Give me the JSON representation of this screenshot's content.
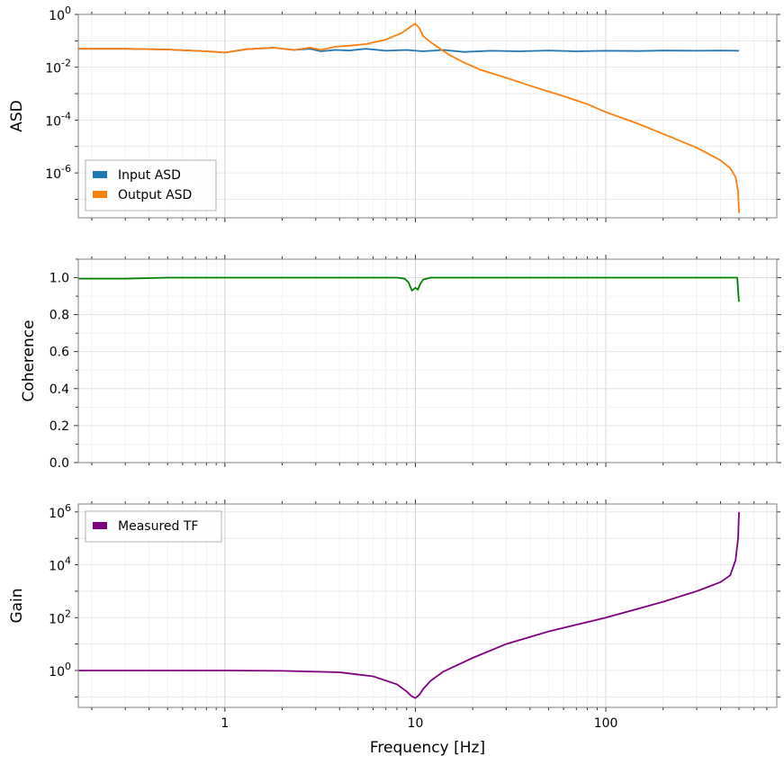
{
  "chart_data": [
    {
      "type": "line",
      "ylabel": "ASD",
      "x_scale": "log",
      "y_scale": "log",
      "xlim": [
        0.17,
        790
      ],
      "ylim": [
        2e-08,
        1.0
      ],
      "x_tick_labels": [],
      "y_tick_values": [
        1,
        0.01,
        0.0001,
        1e-06
      ],
      "y_tick_labels": [
        {
          "base": "10",
          "exp": "0"
        },
        {
          "base": "10",
          "exp": "-2"
        },
        {
          "base": "10",
          "exp": "-4"
        },
        {
          "base": "10",
          "exp": "-6"
        }
      ],
      "grid": true,
      "legend_position": "lower-left",
      "series": [
        {
          "name": "Input ASD",
          "color": "#1f77b4",
          "x": [
            0.17,
            0.3,
            0.5,
            0.8,
            1.0,
            1.3,
            1.8,
            2.3,
            2.8,
            3.2,
            3.8,
            4.5,
            5.5,
            7,
            9,
            11,
            14,
            18,
            25,
            35,
            50,
            70,
            100,
            150,
            200,
            300,
            400,
            500
          ],
          "y": [
            0.05,
            0.05,
            0.047,
            0.04,
            0.036,
            0.048,
            0.055,
            0.045,
            0.05,
            0.04,
            0.045,
            0.043,
            0.05,
            0.042,
            0.045,
            0.04,
            0.045,
            0.038,
            0.042,
            0.04,
            0.043,
            0.04,
            0.042,
            0.041,
            0.043,
            0.042,
            0.043,
            0.042
          ]
        },
        {
          "name": "Output ASD",
          "color": "#ff7f0e",
          "x": [
            0.17,
            0.3,
            0.5,
            0.8,
            1.0,
            1.3,
            1.8,
            2.3,
            2.8,
            3.2,
            3.8,
            4.5,
            5.5,
            7,
            8.5,
            9.5,
            10,
            10.5,
            11,
            12,
            13,
            15,
            18,
            22,
            30,
            40,
            60,
            80,
            100,
            150,
            200,
            300,
            400,
            450,
            480,
            495,
            500
          ],
          "y": [
            0.05,
            0.05,
            0.047,
            0.04,
            0.036,
            0.048,
            0.055,
            0.045,
            0.055,
            0.045,
            0.06,
            0.065,
            0.075,
            0.11,
            0.2,
            0.35,
            0.45,
            0.3,
            0.15,
            0.09,
            0.06,
            0.03,
            0.015,
            0.008,
            0.004,
            0.002,
            0.0008,
            0.0004,
            0.0002,
            7e-05,
            3e-05,
            9e-06,
            3e-06,
            1.5e-06,
            7e-07,
            2e-07,
            3e-08
          ]
        }
      ]
    },
    {
      "type": "line",
      "ylabel": "Coherence",
      "x_scale": "log",
      "y_scale": "linear",
      "xlim": [
        0.17,
        790
      ],
      "ylim": [
        0.0,
        1.1
      ],
      "x_tick_labels": [],
      "y_tick_values": [
        0.0,
        0.2,
        0.4,
        0.6,
        0.8,
        1.0
      ],
      "y_tick_labels": [
        "0.0",
        "0.2",
        "0.4",
        "0.6",
        "0.8",
        "1.0"
      ],
      "grid": true,
      "series": [
        {
          "color": "#008000",
          "x": [
            0.17,
            0.3,
            0.4,
            0.5,
            1.0,
            3.0,
            8.0,
            8.8,
            9.2,
            9.6,
            10.0,
            10.3,
            10.6,
            11.0,
            12.0,
            15.0,
            50.0,
            200.0,
            490.0,
            495.0,
            500.0
          ],
          "y": [
            0.995,
            0.995,
            0.998,
            1.0,
            1.0,
            1.0,
            1.0,
            0.995,
            0.975,
            0.93,
            0.945,
            0.935,
            0.965,
            0.99,
            1.0,
            1.0,
            1.0,
            1.0,
            1.0,
            0.93,
            0.87
          ]
        }
      ]
    },
    {
      "type": "line",
      "ylabel": "Gain",
      "xlabel": "Frequency [Hz]",
      "x_scale": "log",
      "y_scale": "log",
      "xlim": [
        0.17,
        790
      ],
      "ylim": [
        0.04,
        2000000
      ],
      "x_tick_values": [
        1,
        10,
        100
      ],
      "x_tick_labels": [
        "1",
        "10",
        "100"
      ],
      "y_tick_values": [
        1,
        100,
        10000,
        1000000
      ],
      "y_tick_labels": [
        {
          "base": "10",
          "exp": "0"
        },
        {
          "base": "10",
          "exp": "2"
        },
        {
          "base": "10",
          "exp": "4"
        },
        {
          "base": "10",
          "exp": "6"
        }
      ],
      "grid": true,
      "legend_position": "upper-left",
      "series": [
        {
          "name": "Measured TF",
          "color": "#800080",
          "x": [
            0.17,
            1,
            2,
            4,
            6,
            8,
            9,
            9.5,
            10,
            10.5,
            11,
            12,
            14,
            20,
            30,
            50,
            100,
            200,
            300,
            400,
            450,
            480,
            495,
            500
          ],
          "y": [
            1.0,
            1.0,
            0.97,
            0.85,
            0.6,
            0.3,
            0.16,
            0.11,
            0.09,
            0.12,
            0.2,
            0.4,
            0.9,
            3,
            10,
            30,
            100,
            400,
            1000,
            2200,
            4000,
            15000,
            100000,
            1000000
          ]
        }
      ]
    }
  ]
}
